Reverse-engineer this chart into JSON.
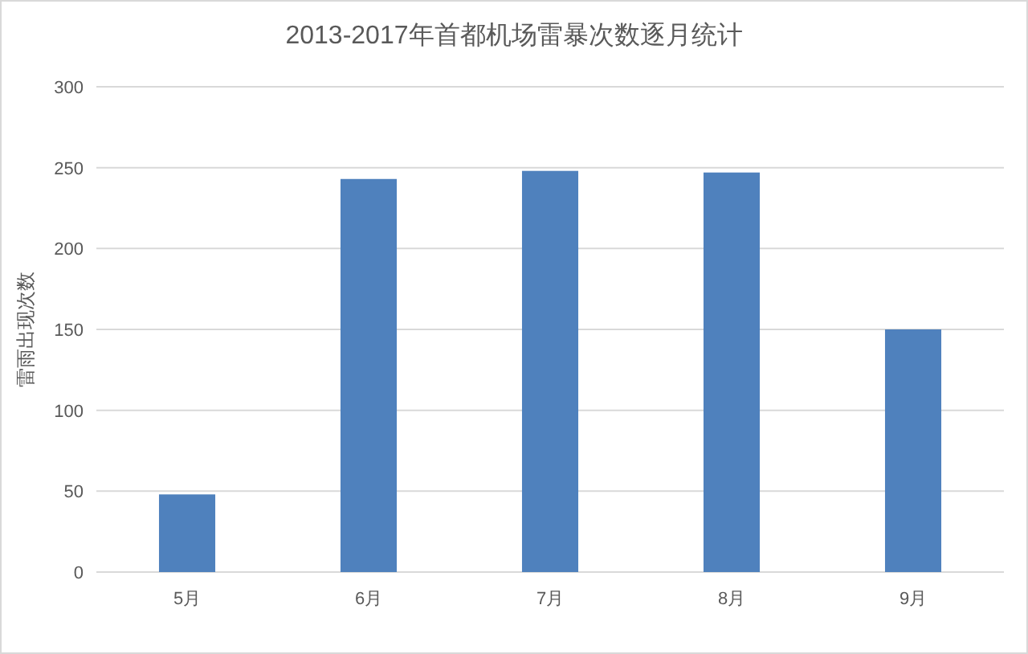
{
  "chart_data": {
    "type": "bar",
    "title": "2013-2017年首都机场雷暴次数逐月统计",
    "ylabel": "雷雨出现次数",
    "categories": [
      "5月",
      "6月",
      "7月",
      "8月",
      "9月"
    ],
    "values": [
      48,
      243,
      248,
      247,
      150
    ],
    "color": "#4f81bd",
    "ylim": [
      0,
      300
    ],
    "yticks": [
      0,
      50,
      100,
      150,
      200,
      250,
      300
    ],
    "grid": "y"
  }
}
